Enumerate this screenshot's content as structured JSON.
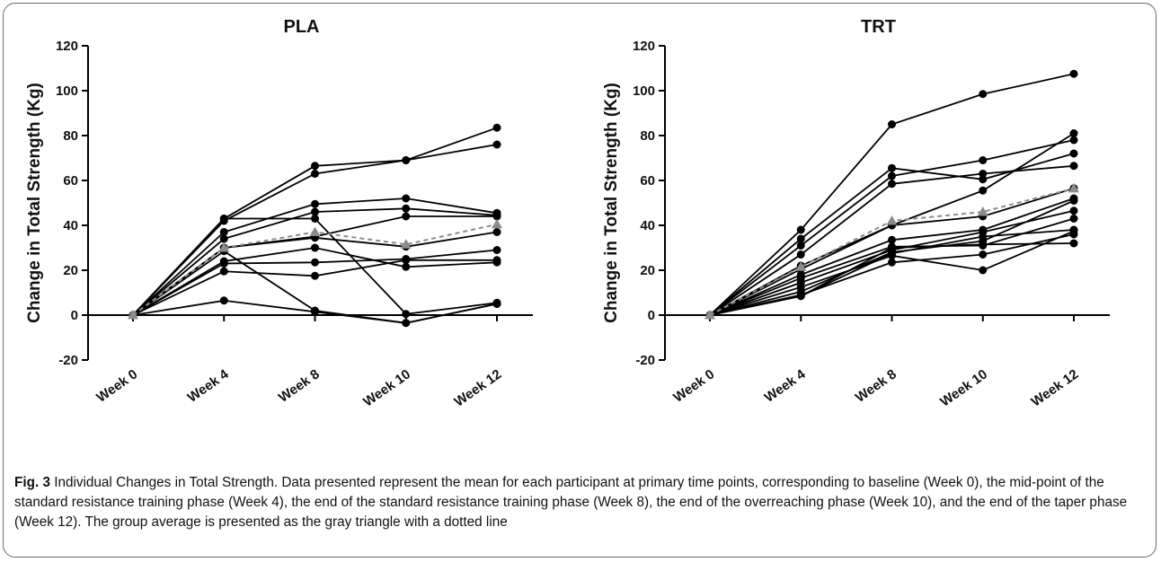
{
  "caption": {
    "label": "Fig. 3",
    "text": " Individual Changes in Total Strength. Data presented represent the mean for each participant at primary time points, corresponding to baseline (Week 0), the mid-point of the standard resistance training phase (Week 4), the end of the standard resistance training phase (Week 8), the end of the overreaching phase (Week 10), and the end of the taper phase (Week 12). The group average is presented as the gray triangle with a dotted line"
  },
  "chart_data": [
    {
      "type": "line",
      "title": "PLA",
      "ylabel": "Change in Total  Strength  (Kg)",
      "xlabel": "",
      "categories": [
        "Week 0",
        "Week 4",
        "Week 8",
        "Week 10",
        "Week 12"
      ],
      "ylim": [
        -20,
        120
      ],
      "yticks": [
        -20,
        0,
        20,
        40,
        60,
        80,
        100,
        120
      ],
      "colors": {
        "individual": "#000000",
        "average": "#8c8c8c"
      },
      "series": [
        {
          "values": [
            0,
            43,
            66.5,
            69,
            83.5
          ]
        },
        {
          "values": [
            0,
            42,
            63,
            69,
            76
          ]
        },
        {
          "values": [
            0,
            43,
            43,
            0.5,
            5.5
          ]
        },
        {
          "values": [
            0,
            37,
            49.5,
            52,
            45.5
          ]
        },
        {
          "values": [
            0,
            34,
            46,
            47.5,
            44.5
          ]
        },
        {
          "values": [
            0,
            30,
            35,
            44,
            44
          ]
        },
        {
          "values": [
            0,
            30,
            34.5,
            30.5,
            37
          ]
        },
        {
          "values": [
            0,
            28.5,
            2,
            -3.5,
            5
          ]
        },
        {
          "values": [
            0,
            24,
            30,
            21.5,
            23.5
          ]
        },
        {
          "values": [
            0,
            23,
            23.5,
            25,
            29
          ]
        },
        {
          "values": [
            0,
            19.5,
            17.5,
            24.5,
            24.5
          ]
        },
        {
          "values": [
            0,
            6.5,
            1.5,
            -3.5,
            5
          ]
        },
        {
          "average": true,
          "values": [
            0,
            30,
            37,
            31.5,
            40.5
          ]
        }
      ]
    },
    {
      "type": "line",
      "title": "TRT",
      "ylabel": "Change in Total  Strength  (Kg)",
      "xlabel": "",
      "categories": [
        "Week 0",
        "Week 4",
        "Week 8",
        "Week 10",
        "Week 12"
      ],
      "ylim": [
        -20,
        120
      ],
      "yticks": [
        -20,
        0,
        20,
        40,
        60,
        80,
        100,
        120
      ],
      "colors": {
        "individual": "#000000",
        "average": "#8c8c8c"
      },
      "series": [
        {
          "values": [
            0,
            38,
            85,
            98.5,
            107.5
          ]
        },
        {
          "values": [
            0,
            34,
            65.5,
            60.5,
            72
          ]
        },
        {
          "values": [
            0,
            31,
            62,
            69,
            78
          ]
        },
        {
          "values": [
            0,
            27,
            58.5,
            63,
            66.5
          ]
        },
        {
          "values": [
            0,
            22,
            40,
            55.5,
            81
          ]
        },
        {
          "values": [
            0,
            20.5,
            40,
            44,
            56.5
          ]
        },
        {
          "values": [
            0,
            18,
            33.5,
            38,
            52
          ]
        },
        {
          "values": [
            0,
            16.5,
            30.5,
            31,
            43
          ]
        },
        {
          "values": [
            0,
            14.5,
            29,
            37,
            46.5
          ]
        },
        {
          "values": [
            0,
            12.5,
            26.5,
            20,
            37.5
          ]
        },
        {
          "values": [
            0,
            10.5,
            28,
            33,
            51
          ]
        },
        {
          "values": [
            0,
            9,
            23.5,
            27,
            36
          ]
        },
        {
          "values": [
            0,
            8.5,
            30,
            31.5,
            32
          ]
        },
        {
          "values": [
            0,
            8.5,
            27.5,
            35,
            38
          ]
        },
        {
          "average": true,
          "values": [
            0,
            21.5,
            42,
            46,
            56.5
          ]
        }
      ]
    }
  ]
}
